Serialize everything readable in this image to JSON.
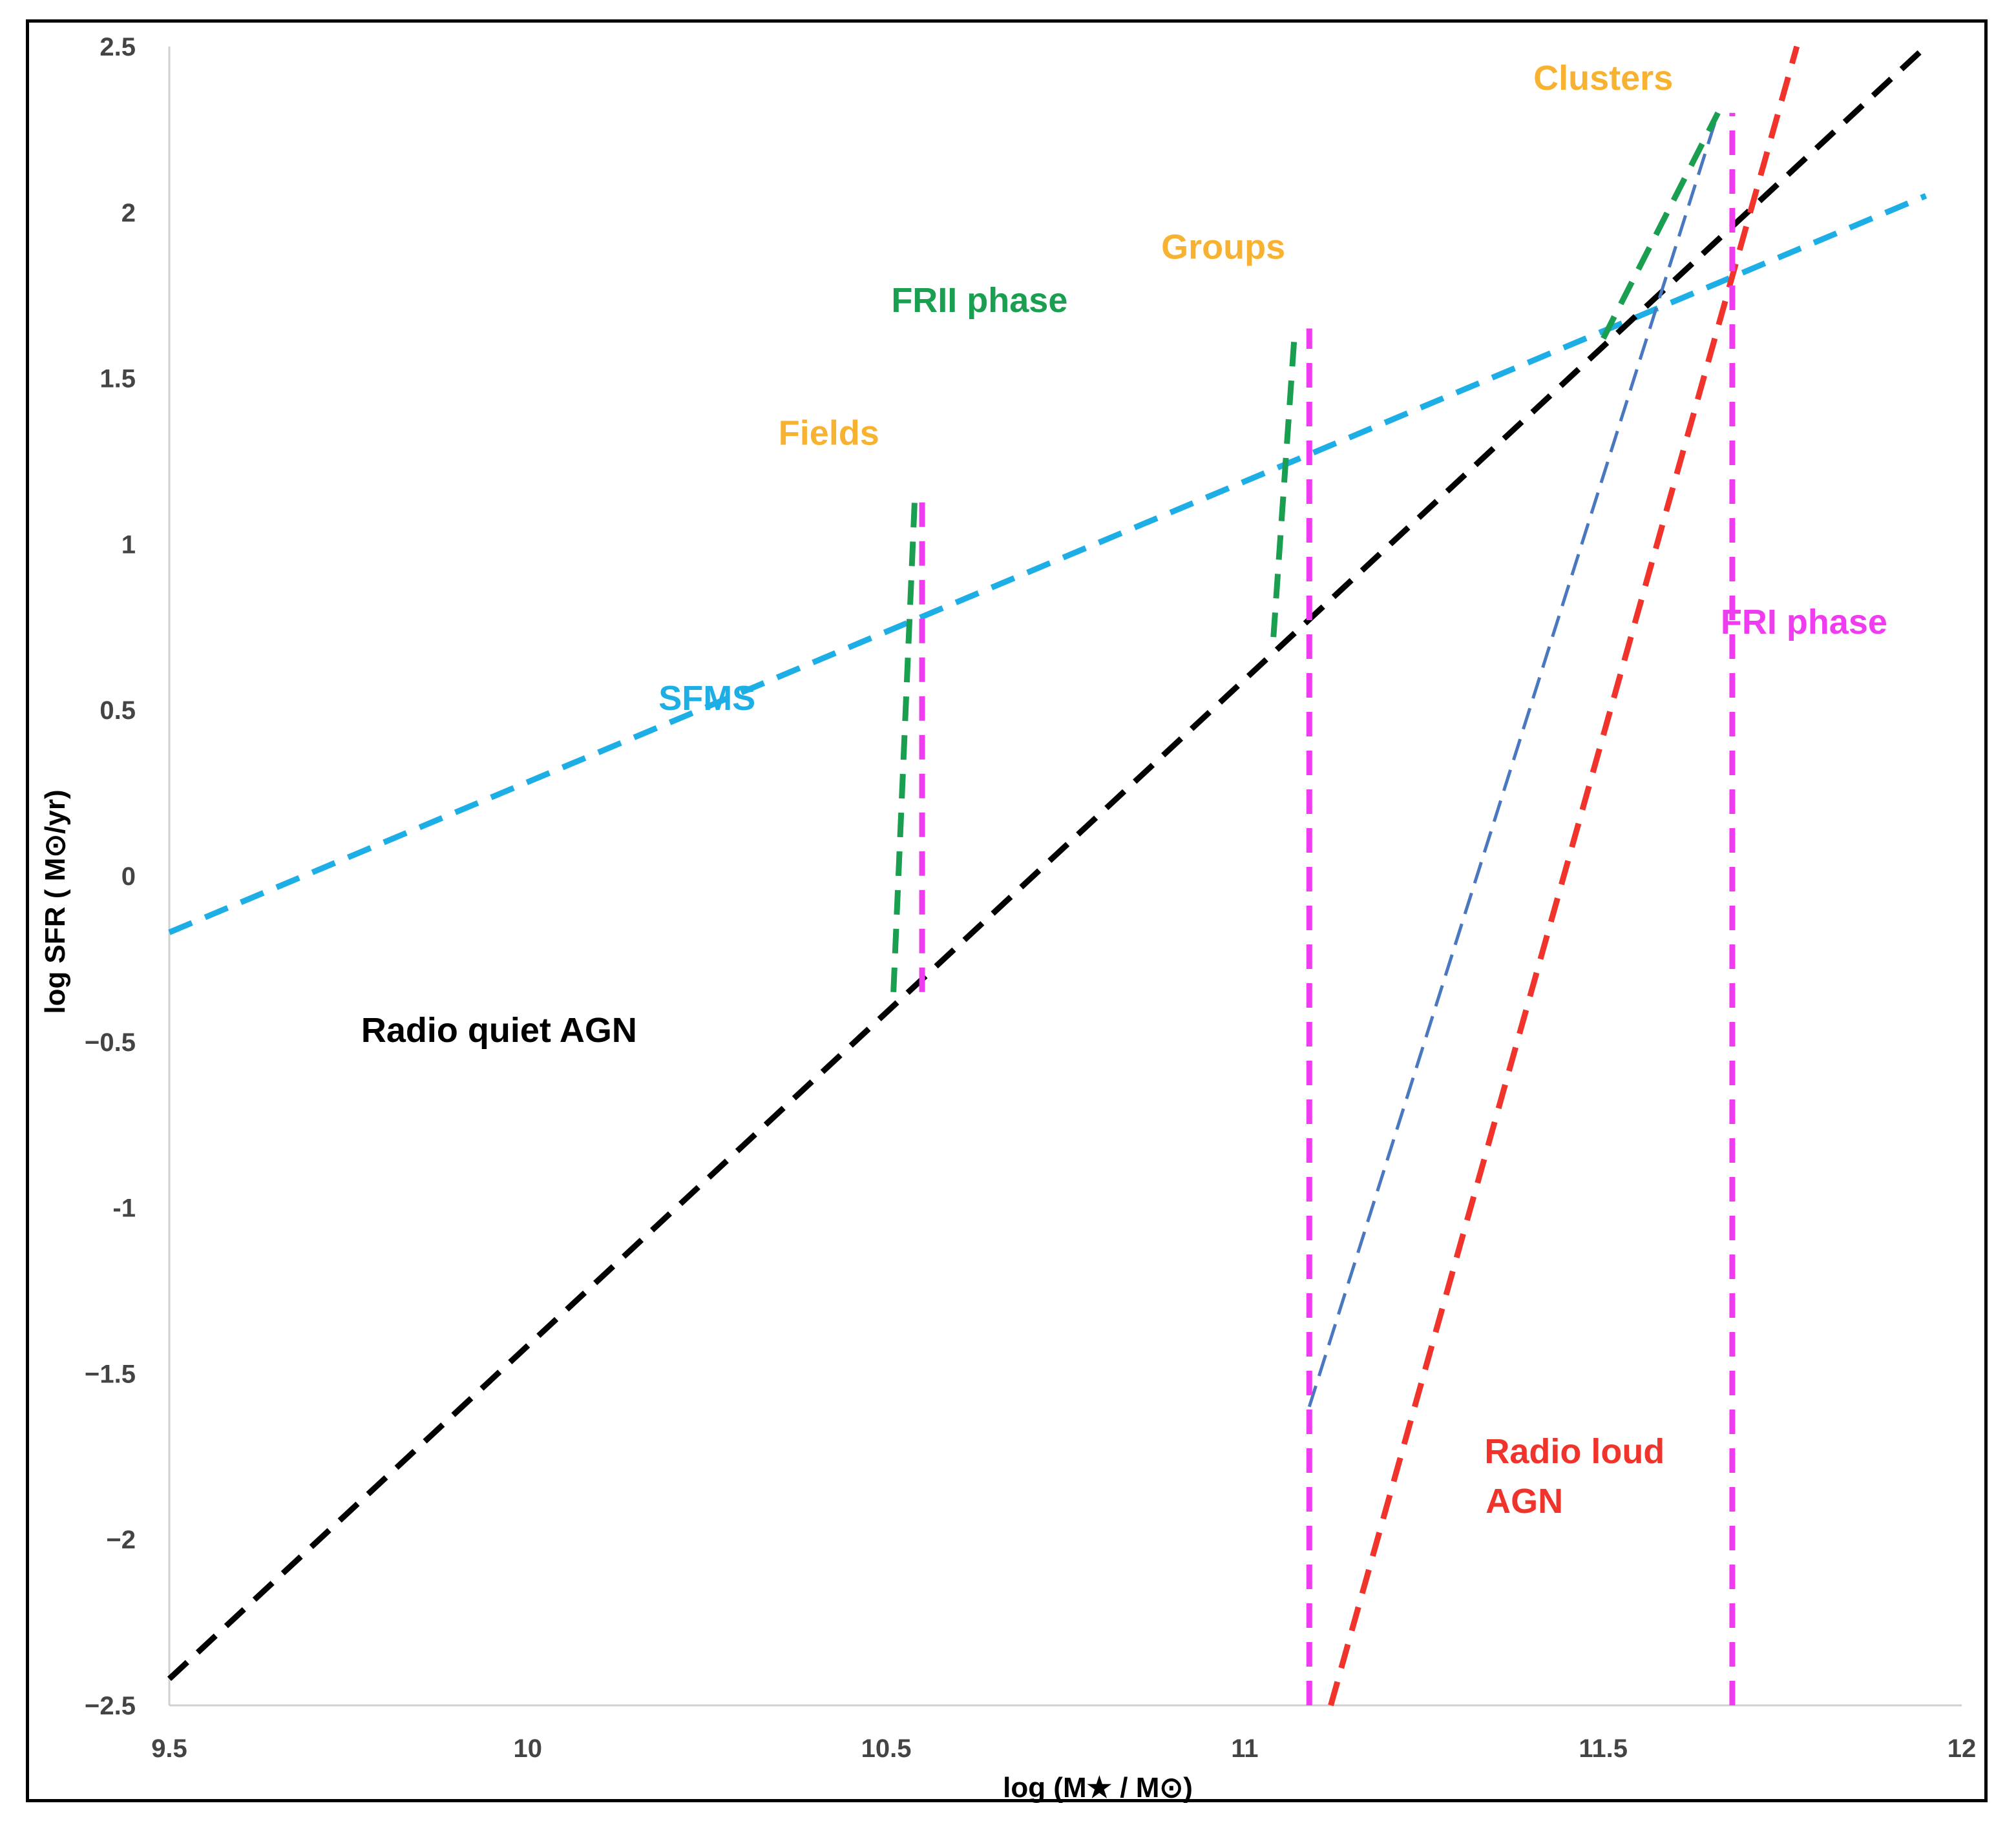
{
  "chart_data": {
    "type": "line",
    "title": "",
    "xlabel": "log (M★ / M⊙)",
    "ylabel": "log SFR ( M⊙/yr)",
    "xlim": [
      9.5,
      12
    ],
    "ylim": [
      -2.5,
      2.5
    ],
    "grid": false,
    "xticks": [
      "9.5",
      "10",
      "10.5",
      "11",
      "11.5",
      "12"
    ],
    "yticks": [
      "−2.5",
      "−2",
      "−1.5",
      "-1",
      "−0.5",
      "0",
      "0.5",
      "1",
      "1.5",
      "2",
      "2.5"
    ],
    "series": [
      {
        "name": "SFMS",
        "color": "#1EAEE6",
        "style": "dashed",
        "x": [
          9.5,
          11.95
        ],
        "y": [
          -0.17,
          2.05
        ]
      },
      {
        "name": "Radio quiet AGN",
        "color": "#000000",
        "style": "dashed",
        "x": [
          9.5,
          11.95
        ],
        "y": [
          -2.42,
          2.5
        ]
      },
      {
        "name": "Radio loud AGN",
        "color": "#F0332B",
        "style": "dashed",
        "x": [
          11.12,
          11.77
        ],
        "y": [
          -2.5,
          2.5
        ]
      },
      {
        "name": "blue thin",
        "color": "#4A78C0",
        "style": "dashed-thin",
        "x": [
          11.09,
          11.66
        ],
        "y": [
          -1.6,
          2.3
        ]
      },
      {
        "name": "FRII field",
        "color": "#1A9E50",
        "style": "dashed",
        "x": [
          10.51,
          10.54
        ],
        "y": [
          -0.35,
          1.15
        ]
      },
      {
        "name": "FRII group",
        "color": "#1A9E50",
        "style": "dashed",
        "x": [
          11.04,
          11.07
        ],
        "y": [
          0.72,
          1.65
        ]
      },
      {
        "name": "FRII cluster",
        "color": "#1A9E50",
        "style": "dashed",
        "x": [
          11.5,
          11.66
        ],
        "y": [
          1.62,
          2.3
        ]
      },
      {
        "name": "FRI field",
        "color": "#F03CF0",
        "style": "dashed",
        "x": [
          10.55,
          10.55
        ],
        "y": [
          -0.35,
          1.15
        ]
      },
      {
        "name": "FRI group",
        "color": "#F03CF0",
        "style": "dashed",
        "x": [
          11.09,
          11.09
        ],
        "y": [
          -2.5,
          1.65
        ]
      },
      {
        "name": "FRI cluster",
        "color": "#F03CF0",
        "style": "dashed",
        "x": [
          11.68,
          11.68
        ],
        "y": [
          -2.5,
          2.3
        ]
      }
    ],
    "annotations": [
      {
        "text": "Clusters",
        "color": "#F8B232",
        "x": 11.5,
        "y": 2.37
      },
      {
        "text": "Groups",
        "color": "#F8B232",
        "x": 10.97,
        "y": 1.86
      },
      {
        "text": "FRII phase",
        "color": "#1A9E50",
        "x": 10.63,
        "y": 1.7
      },
      {
        "text": "Fields",
        "color": "#F8B232",
        "x": 10.42,
        "y": 1.3
      },
      {
        "text": "SFMS",
        "color": "#1EAEE6",
        "x": 10.25,
        "y": 0.5
      },
      {
        "text": "FRI phase",
        "color": "#F03CF0",
        "x": 11.78,
        "y": 0.73
      },
      {
        "text": "Radio quiet AGN",
        "color": "#000000",
        "x": 9.96,
        "y": -0.5
      },
      {
        "text": "Radio loud",
        "color": "#F0332B",
        "x": 11.46,
        "y": -1.77
      },
      {
        "text": "AGN",
        "color": "#F0332B",
        "x": 11.39,
        "y": -1.92
      }
    ]
  }
}
